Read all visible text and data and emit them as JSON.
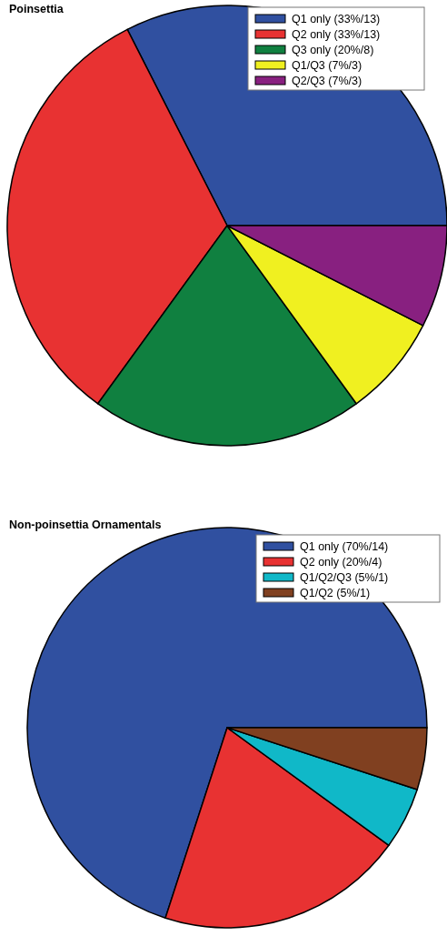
{
  "chart_data": [
    {
      "type": "pie",
      "title": "Poinsettia",
      "legend": "top right",
      "categories": [
        "Q1 only (33%/13)",
        "Q2 only (33%/13)",
        "Q3 only (20%/8)",
        "Q1/Q3 (7%/3)",
        "Q2/Q3 (7%/3)"
      ],
      "values": [
        13,
        13,
        8,
        3,
        3
      ],
      "colors": [
        "#3050a0",
        "#e83232",
        "#108040",
        "#f0f020",
        "#882080"
      ]
    },
    {
      "type": "pie",
      "title": "Non-poinsettia Ornamentals",
      "legend": "top right",
      "categories": [
        "Q1 only (70%/14)",
        "Q2 only (20%/4)",
        "Q1/Q2/Q3 (5%/1)",
        "Q1/Q2 (5%/1)"
      ],
      "values": [
        14,
        4,
        1,
        1
      ],
      "colors": [
        "#3050a0",
        "#e83232",
        "#10b8c8",
        "#804020"
      ]
    }
  ]
}
